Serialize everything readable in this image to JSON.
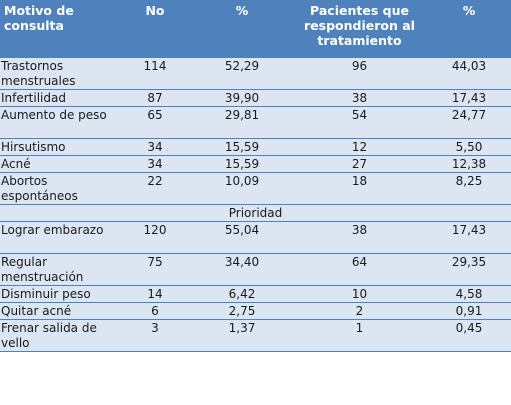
{
  "table": {
    "headers": [
      "Motivo de consulta",
      "No",
      "%",
      "Pacientes que respondieron al tratamiento",
      "%"
    ],
    "rows": [
      [
        "Trastornos menstruales",
        "114",
        "52,29",
        "96",
        "44,03"
      ],
      [
        "Infertilidad",
        "87",
        "39,90",
        "38",
        "17,43"
      ],
      [
        "Aumento de peso",
        "65",
        "29,81",
        "54",
        "24,77"
      ],
      [
        "Hirsutismo",
        "34",
        "15,59",
        "12",
        "5,50"
      ],
      [
        "Acné",
        "34",
        "15,59",
        "27",
        "12,38"
      ],
      [
        "Abortos espontáneos",
        "22",
        "10,09",
        "18",
        "8,25"
      ]
    ],
    "section_label": "Prioridad",
    "priority_rows": [
      [
        "Lograr embarazo",
        "120",
        "55,04",
        "38",
        "17,43"
      ],
      [
        "Regular menstruación",
        "75",
        "34,40",
        "64",
        "29,35"
      ],
      [
        "Disminuir peso",
        "14",
        "6,42",
        "10",
        "4,58"
      ],
      [
        "Quitar acné",
        "6",
        "2,75",
        "2",
        "0,91"
      ],
      [
        "Frenar salida de vello",
        "3",
        "1,37",
        "1",
        "0,45"
      ]
    ]
  },
  "colors": {
    "header_bg": "#4f81bd",
    "body_bg": "#dbe6f2",
    "rule": "#4f81bd"
  }
}
